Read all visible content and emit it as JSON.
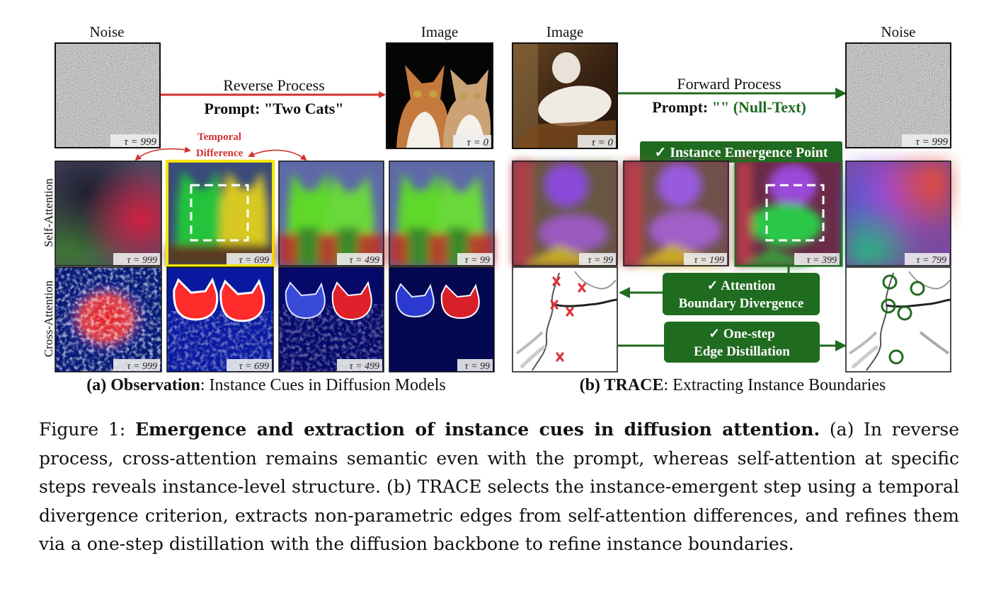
{
  "panel_a": {
    "noise_label": "Noise",
    "image_label": "Image",
    "arrow_label": "Reverse Process",
    "prompt_label": "Prompt: \"Two Cats\"",
    "tau_noise": "τ = 999",
    "tau_image": "τ = 0",
    "temporal_label_1": "Temporal",
    "temporal_label_2": "Difference",
    "row_label_self": "Self-Attention",
    "row_label_cross": "Cross-Attention",
    "self_taus": [
      "τ = 999",
      "τ = 699",
      "τ = 499",
      "τ = 99"
    ],
    "cross_taus": [
      "τ = 999",
      "τ = 699",
      "τ = 499",
      "τ = 99"
    ],
    "subcaption_bold": "(a) Observation",
    "subcaption_rest": ": Instance Cues in Diffusion Models"
  },
  "panel_b": {
    "image_label": "Image",
    "noise_label": "Noise",
    "arrow_label": "Forward Process",
    "prompt_prefix": "Prompt: ",
    "prompt_value": "\"\" (Null-Text)",
    "tau_image": "τ = 0",
    "tau_noise": "τ = 999",
    "emergence_label": "✓ Instance Emergence Point",
    "self_taus": [
      "τ = 99",
      "τ = 199",
      "τ = 399",
      "τ = 799"
    ],
    "divergence_line1": "✓ Attention",
    "divergence_line2": "Boundary Divergence",
    "distill_line1": "✓ One-step",
    "distill_line2": "Edge Distillation",
    "subcaption_bold": "(b) TRACE",
    "subcaption_rest": ": Extracting Instance Boundaries"
  },
  "caption": {
    "prefix": "Figure 1: ",
    "title": "Emergence and extraction of instance cues in diffusion attention.",
    "body": " (a) In reverse process, cross-attention remains semantic even with the prompt, whereas self-attention at specific steps reveals instance-level structure. (b) TRACE selects the instance-emergent step using a temporal divergence criterion, extracts non-parametric edges from self-attention differences, and refines them via a one-step distillation with the diffusion backbone to refine instance boundaries."
  },
  "colors": {
    "red_arrow": "#d0312d",
    "green": "#1f6b1f",
    "highlight_yellow": "#f5e400",
    "marker_red": "#d9363e"
  }
}
